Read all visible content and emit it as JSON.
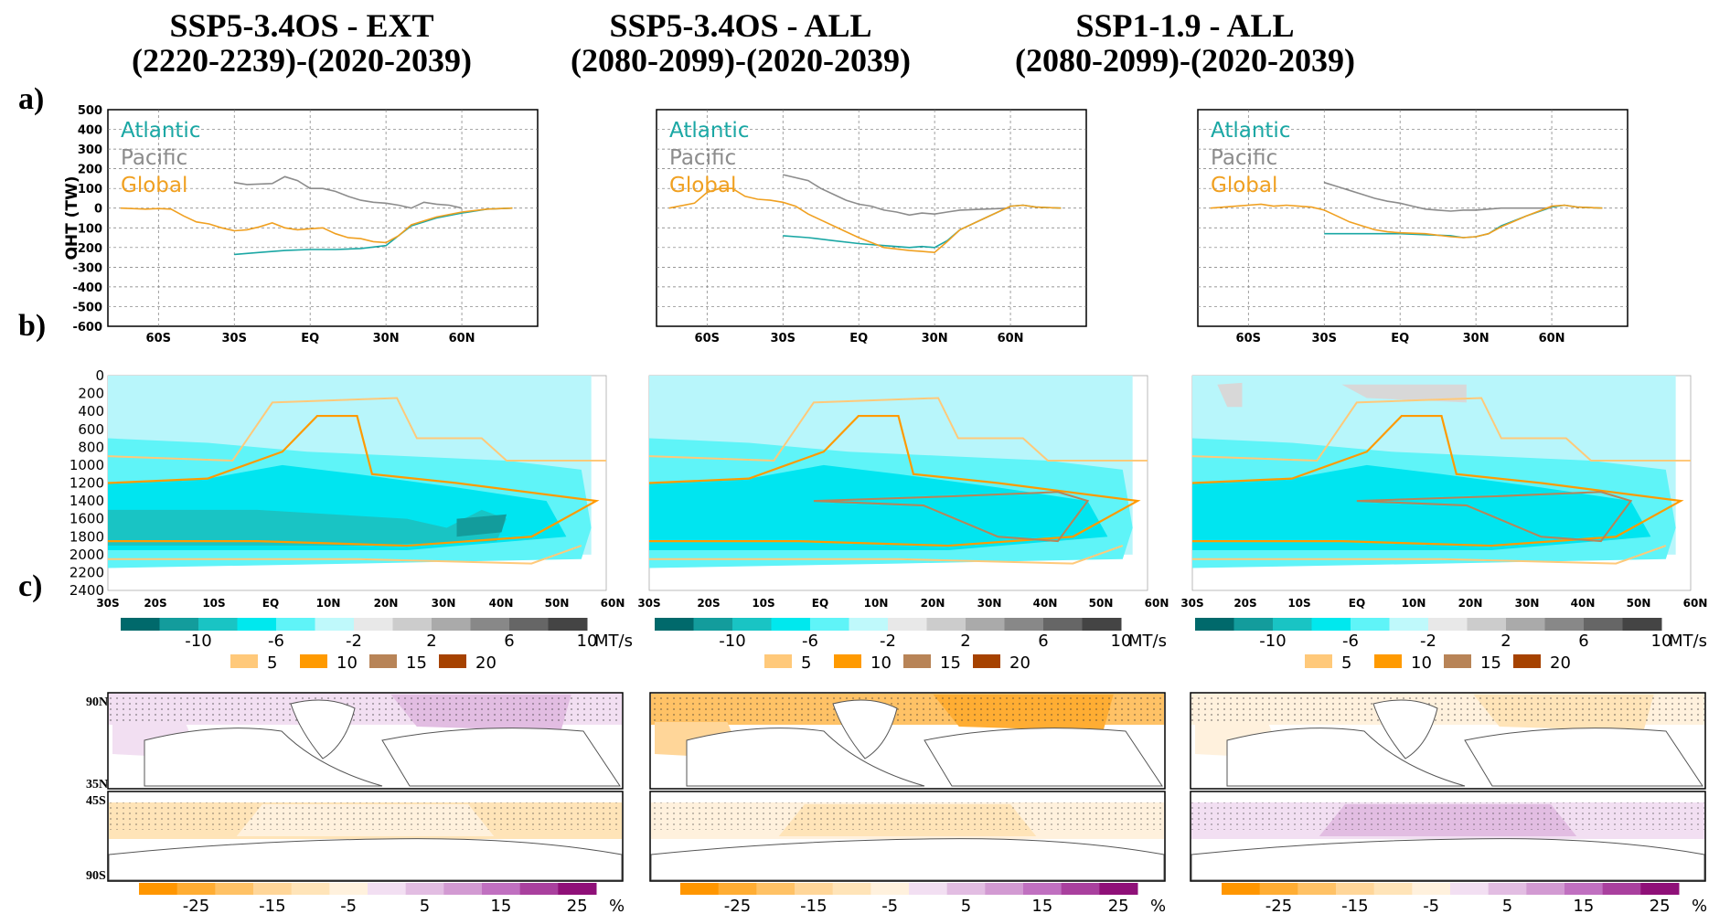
{
  "columns": [
    {
      "title_line1": "SSP5-3.4OS - EXT",
      "title_line2": "(2220-2239)-(2020-2039)"
    },
    {
      "title_line1": "SSP5-3.4OS - ALL",
      "title_line2": "(2080-2099)-(2020-2039)"
    },
    {
      "title_line1": "SSP1-1.9 - ALL",
      "title_line2": "(2080-2099)-(2020-2039)"
    }
  ],
  "row_labels": [
    "a)",
    "b)",
    "c)"
  ],
  "colors": {
    "atlantic": "#1aa7a4",
    "pacific": "#8c8c8c",
    "global": "#f0a020",
    "cyan_fill": "#00e5f0",
    "light_cyan": "#b8f6fb"
  },
  "chart_data": [
    {
      "type": "line",
      "panel": "a",
      "ylabel": "OHT (TW)",
      "ylim": [
        -600,
        500
      ],
      "yticks": [
        "500",
        "400",
        "300",
        "200",
        "100",
        "0",
        "-100",
        "-200",
        "-300",
        "-400",
        "-500",
        "-600"
      ],
      "xticks": [
        {
          "lat": -60,
          "label": "60S"
        },
        {
          "lat": -30,
          "label": "30S"
        },
        {
          "lat": 0,
          "label": "EQ"
        },
        {
          "lat": 30,
          "label": "30N"
        },
        {
          "lat": 60,
          "label": "60N"
        }
      ],
      "xlim": [
        -80,
        90
      ],
      "legend": [
        "Atlantic",
        "Pacific",
        "Global"
      ],
      "panels": [
        {
          "atlantic": [
            [
              -30,
              -235
            ],
            [
              -20,
              -225
            ],
            [
              -10,
              -215
            ],
            [
              0,
              -210
            ],
            [
              10,
              -210
            ],
            [
              20,
              -205
            ],
            [
              30,
              -190
            ],
            [
              35,
              -140
            ],
            [
              40,
              -90
            ],
            [
              50,
              -50
            ],
            [
              60,
              -25
            ],
            [
              70,
              -5
            ],
            [
              80,
              0
            ]
          ],
          "pacific": [
            [
              -30,
              130
            ],
            [
              -25,
              120
            ],
            [
              -15,
              125
            ],
            [
              -10,
              160
            ],
            [
              -5,
              140
            ],
            [
              0,
              100
            ],
            [
              5,
              100
            ],
            [
              10,
              85
            ],
            [
              15,
              60
            ],
            [
              20,
              40
            ],
            [
              25,
              30
            ],
            [
              30,
              25
            ],
            [
              35,
              15
            ],
            [
              40,
              0
            ],
            [
              45,
              30
            ],
            [
              50,
              20
            ],
            [
              55,
              15
            ],
            [
              60,
              0
            ]
          ],
          "global": [
            [
              -75,
              0
            ],
            [
              -65,
              -5
            ],
            [
              -60,
              -2
            ],
            [
              -55,
              -5
            ],
            [
              -50,
              -40
            ],
            [
              -45,
              -70
            ],
            [
              -40,
              -80
            ],
            [
              -35,
              -100
            ],
            [
              -30,
              -115
            ],
            [
              -25,
              -110
            ],
            [
              -20,
              -95
            ],
            [
              -15,
              -75
            ],
            [
              -10,
              -100
            ],
            [
              -5,
              -110
            ],
            [
              0,
              -105
            ],
            [
              5,
              -100
            ],
            [
              10,
              -130
            ],
            [
              15,
              -150
            ],
            [
              20,
              -155
            ],
            [
              25,
              -170
            ],
            [
              30,
              -175
            ],
            [
              35,
              -140
            ],
            [
              40,
              -85
            ],
            [
              50,
              -45
            ],
            [
              60,
              -20
            ],
            [
              70,
              -5
            ],
            [
              80,
              0
            ]
          ]
        },
        {
          "atlantic": [
            [
              -30,
              -140
            ],
            [
              -20,
              -150
            ],
            [
              -10,
              -165
            ],
            [
              0,
              -180
            ],
            [
              10,
              -190
            ],
            [
              20,
              -200
            ],
            [
              25,
              -195
            ],
            [
              30,
              -200
            ],
            [
              35,
              -165
            ],
            [
              40,
              -110
            ],
            [
              50,
              -50
            ],
            [
              60,
              10
            ],
            [
              65,
              15
            ],
            [
              70,
              5
            ],
            [
              80,
              0
            ]
          ],
          "pacific": [
            [
              -30,
              170
            ],
            [
              -20,
              140
            ],
            [
              -15,
              100
            ],
            [
              -10,
              70
            ],
            [
              -5,
              40
            ],
            [
              0,
              20
            ],
            [
              5,
              10
            ],
            [
              10,
              -10
            ],
            [
              15,
              -20
            ],
            [
              20,
              -35
            ],
            [
              25,
              -25
            ],
            [
              30,
              -30
            ],
            [
              35,
              -20
            ],
            [
              40,
              -10
            ],
            [
              50,
              -5
            ],
            [
              60,
              0
            ]
          ],
          "global": [
            [
              -75,
              0
            ],
            [
              -65,
              25
            ],
            [
              -60,
              80
            ],
            [
              -55,
              100
            ],
            [
              -50,
              100
            ],
            [
              -45,
              60
            ],
            [
              -40,
              45
            ],
            [
              -35,
              40
            ],
            [
              -30,
              30
            ],
            [
              -25,
              10
            ],
            [
              -20,
              -30
            ],
            [
              -15,
              -60
            ],
            [
              -10,
              -90
            ],
            [
              -5,
              -120
            ],
            [
              0,
              -150
            ],
            [
              5,
              -175
            ],
            [
              10,
              -200
            ],
            [
              20,
              -215
            ],
            [
              25,
              -220
            ],
            [
              30,
              -225
            ],
            [
              35,
              -170
            ],
            [
              40,
              -110
            ],
            [
              50,
              -50
            ],
            [
              60,
              10
            ],
            [
              65,
              15
            ],
            [
              70,
              5
            ],
            [
              80,
              0
            ]
          ]
        },
        {
          "atlantic": [
            [
              -30,
              -130
            ],
            [
              -20,
              -130
            ],
            [
              -10,
              -130
            ],
            [
              0,
              -130
            ],
            [
              10,
              -135
            ],
            [
              20,
              -140
            ],
            [
              25,
              -150
            ],
            [
              30,
              -145
            ],
            [
              35,
              -130
            ],
            [
              40,
              -90
            ],
            [
              50,
              -40
            ],
            [
              60,
              5
            ],
            [
              65,
              15
            ],
            [
              70,
              5
            ],
            [
              80,
              0
            ]
          ],
          "pacific": [
            [
              -30,
              130
            ],
            [
              -25,
              110
            ],
            [
              -20,
              90
            ],
            [
              -15,
              70
            ],
            [
              -10,
              50
            ],
            [
              -5,
              35
            ],
            [
              0,
              25
            ],
            [
              5,
              10
            ],
            [
              10,
              -5
            ],
            [
              15,
              -10
            ],
            [
              20,
              -15
            ],
            [
              25,
              -10
            ],
            [
              30,
              -10
            ],
            [
              35,
              -5
            ],
            [
              40,
              0
            ],
            [
              50,
              0
            ],
            [
              60,
              0
            ]
          ],
          "global": [
            [
              -75,
              0
            ],
            [
              -65,
              10
            ],
            [
              -60,
              15
            ],
            [
              -55,
              20
            ],
            [
              -50,
              10
            ],
            [
              -45,
              15
            ],
            [
              -40,
              10
            ],
            [
              -35,
              5
            ],
            [
              -30,
              -10
            ],
            [
              -25,
              -40
            ],
            [
              -20,
              -70
            ],
            [
              -15,
              -90
            ],
            [
              -10,
              -110
            ],
            [
              -5,
              -120
            ],
            [
              0,
              -125
            ],
            [
              10,
              -130
            ],
            [
              20,
              -145
            ],
            [
              25,
              -150
            ],
            [
              30,
              -145
            ],
            [
              35,
              -130
            ],
            [
              40,
              -95
            ],
            [
              50,
              -40
            ],
            [
              60,
              10
            ],
            [
              65,
              15
            ],
            [
              70,
              5
            ],
            [
              80,
              0
            ]
          ]
        }
      ]
    },
    {
      "type": "heatmap",
      "panel": "b",
      "ylim": [
        2400,
        0
      ],
      "yticks": [
        "0",
        "200",
        "400",
        "600",
        "800",
        "1000",
        "1200",
        "1400",
        "1600",
        "1800",
        "2000",
        "2200",
        "2400"
      ],
      "xticks": [
        "30S",
        "20S",
        "10S",
        "EQ",
        "10N",
        "20N",
        "30N",
        "40N",
        "50N",
        "60N"
      ],
      "colorbar": {
        "ticks": [
          "-10",
          "-6",
          "-2",
          "2",
          "6",
          "10"
        ],
        "unit": "MT/s",
        "colors": [
          "#00696b",
          "#139c9c",
          "#19c4c4",
          "#00e8ee",
          "#5ff4f8",
          "#bff9fb",
          "#e8e8e8",
          "#cccccc",
          "#aaaaaa",
          "#888888",
          "#666666",
          "#444444"
        ]
      },
      "contour_legend": [
        {
          "label": "5",
          "color": "#ffc97a"
        },
        {
          "label": "10",
          "color": "#ff9a00"
        },
        {
          "label": "15",
          "color": "#b88457"
        },
        {
          "label": "20",
          "color": "#a64200"
        }
      ]
    },
    {
      "type": "heatmap",
      "panel": "c",
      "map_labels_top": [
        "90N",
        "35N"
      ],
      "map_labels_bottom": [
        "45S",
        "90S"
      ],
      "colorbar": {
        "ticks": [
          "-25",
          "-15",
          "-5",
          "5",
          "15",
          "25"
        ],
        "unit": "%",
        "colors": [
          "#ff9600",
          "#ffad33",
          "#ffc266",
          "#ffd699",
          "#ffe4b8",
          "#fff1dd",
          "#f2dff2",
          "#e2bde2",
          "#d29ad2",
          "#c070c0",
          "#a9409e",
          "#8f1078"
        ]
      }
    }
  ]
}
